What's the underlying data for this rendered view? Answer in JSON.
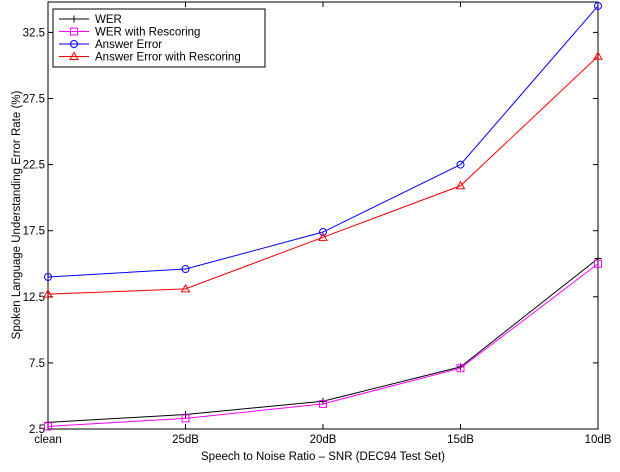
{
  "chart_data": {
    "type": "line",
    "xlabel": "Speech to Noise Ratio – SNR (DEC94 Test Set)",
    "ylabel": "Spoken Language Understanding Error Rate (%)",
    "categories": [
      "clean",
      "25dB",
      "20dB",
      "15dB",
      "10dB"
    ],
    "y_ticks": [
      "2.5",
      "7.5",
      "12.5",
      "17.5",
      "22.5",
      "27.5",
      "32.5"
    ],
    "ylim": [
      2.5,
      34.8
    ],
    "grid": false,
    "legend_position": "top-left",
    "series": [
      {
        "name": "WER",
        "color": "#000000",
        "marker": "plus",
        "values": [
          3.0,
          3.6,
          4.6,
          7.2,
          15.4
        ]
      },
      {
        "name": "WER with Rescoring",
        "color": "#ff00ff",
        "marker": "square",
        "values": [
          2.7,
          3.3,
          4.4,
          7.1,
          15.0
        ]
      },
      {
        "name": "Answer Error",
        "color": "#0000ff",
        "marker": "circle",
        "values": [
          14.0,
          14.6,
          17.4,
          22.5,
          34.5
        ]
      },
      {
        "name": "Answer Error with Rescoring",
        "color": "#ff0000",
        "marker": "triangle",
        "values": [
          12.7,
          13.1,
          17.0,
          20.9,
          30.7
        ]
      }
    ]
  }
}
